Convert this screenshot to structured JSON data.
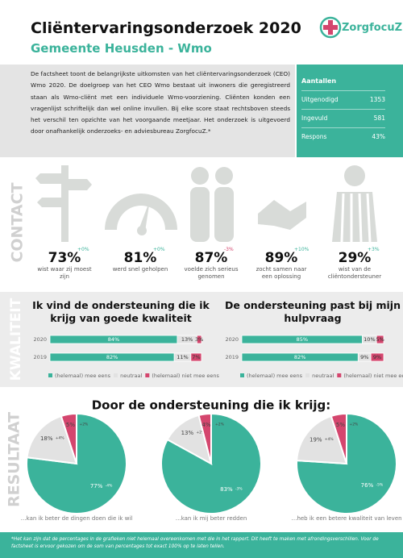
{
  "header": {
    "title": "Cliëntervaringsonderzoek 2020",
    "subtitle": "Gemeente Heusden - Wmo",
    "logo": "ZorgfocuZ"
  },
  "intro": "De factsheet toont de belangrijkste uitkomsten van het cliëntervaringsonderzoek (CEO) Wmo 2020. De doelgroep van het CEO Wmo bestaat uit inwoners die geregistreerd staan als Wmo-cliënt met een individuele Wmo-voorziening. Cliënten konden een vragenlijst schriftelijk dan wel online invullen. Bij elke score staat rechtsboven steeds het verschil ten opzichte van het voorgaande meetjaar. Het onderzoek is uitgevoerd door onafhankelijk onderzoeks- en adviesbureau ZorgfocuZ.*",
  "counts": {
    "title": "Aantallen",
    "rows": [
      [
        "Uitgenodigd",
        "1353"
      ],
      [
        "Ingevuld",
        "581"
      ],
      [
        "Respons",
        "43%"
      ]
    ]
  },
  "sections": [
    "CONTACT",
    "KWALITEIT",
    "RESULTAAT"
  ],
  "contact": [
    {
      "value": "73%",
      "change": "+0%",
      "label": "wist waar zij moest zijn"
    },
    {
      "value": "81%",
      "change": "+0%",
      "label": "werd snel geholpen"
    },
    {
      "value": "87%",
      "change": "-3%",
      "label": "voelde zich serieus genomen"
    },
    {
      "value": "89%",
      "change": "+10%",
      "label": "zocht samen naar een oplossing"
    },
    {
      "value": "29%",
      "change": "+3%",
      "label": "wist van de cliëntondersteuner"
    }
  ],
  "resultaat_title": "Door de ondersteuning die ik krijg:",
  "chart_data": [
    {
      "type": "bar",
      "orientation": "horizontal",
      "stacked": true,
      "title": "Ik vind de ondersteuning die ik krijg van goede kwaliteit",
      "categories": [
        "2020",
        "2019"
      ],
      "xlim": [
        0,
        100
      ],
      "series": [
        {
          "name": "(helemaal) mee eens",
          "color": "#3bb39b",
          "values": [
            84,
            82
          ],
          "value_labels": [
            "84%",
            "82%"
          ]
        },
        {
          "name": "neutraal",
          "color": "#e2e2e2",
          "values": [
            13,
            11
          ],
          "value_labels": [
            "13%",
            "11%"
          ]
        },
        {
          "name": "(helemaal) niet mee eens",
          "color": "#d4466e",
          "values": [
            3,
            7
          ],
          "value_labels": [
            "3%",
            "7%"
          ]
        }
      ]
    },
    {
      "type": "bar",
      "orientation": "horizontal",
      "stacked": true,
      "title": "De ondersteuning past bij mijn hulpvraag",
      "categories": [
        "2020",
        "2019"
      ],
      "xlim": [
        0,
        100
      ],
      "series": [
        {
          "name": "(helemaal) mee eens",
          "color": "#3bb39b",
          "values": [
            85,
            82
          ],
          "value_labels": [
            "85%",
            "82%"
          ]
        },
        {
          "name": "neutraal",
          "color": "#e2e2e2",
          "values": [
            10,
            9
          ],
          "value_labels": [
            "10%",
            "9%"
          ]
        },
        {
          "name": "(helemaal) niet mee eens",
          "color": "#d4466e",
          "values": [
            5,
            9
          ],
          "value_labels": [
            "5%",
            "9%"
          ]
        }
      ]
    },
    {
      "type": "pie",
      "caption": "…kan ik beter de dingen doen die ik wil",
      "values": [
        77,
        18,
        5
      ],
      "value_labels": [
        "77%",
        "18%",
        "5%"
      ],
      "changes": [
        "-4%",
        "+4%",
        "+2%"
      ],
      "colors": [
        "#3bb39b",
        "#e2e2e2",
        "#d4466e"
      ]
    },
    {
      "type": "pie",
      "caption": "…kan ik mij beter redden",
      "values": [
        83,
        13,
        4
      ],
      "value_labels": [
        "83%",
        "13%",
        "4%"
      ],
      "changes": [
        "-3%",
        "+2%",
        "+2%"
      ],
      "colors": [
        "#3bb39b",
        "#e2e2e2",
        "#d4466e"
      ]
    },
    {
      "type": "pie",
      "caption": "…heb ik een betere kwaliteit van leven",
      "values": [
        76,
        19,
        5
      ],
      "value_labels": [
        "76%",
        "19%",
        "5%"
      ],
      "changes": [
        "-5%",
        "+4%",
        "+2%"
      ],
      "colors": [
        "#3bb39b",
        "#e2e2e2",
        "#d4466e"
      ]
    }
  ],
  "footnote": "*Het kan zijn dat de percentages in de grafieken niet helemaal overeenkomen met die in het rapport. Dit heeft te maken met afrondingsverschillen. Voor de factsheet is ervoor gekozen om de som van percentages tot exact 100% op te laten tellen."
}
